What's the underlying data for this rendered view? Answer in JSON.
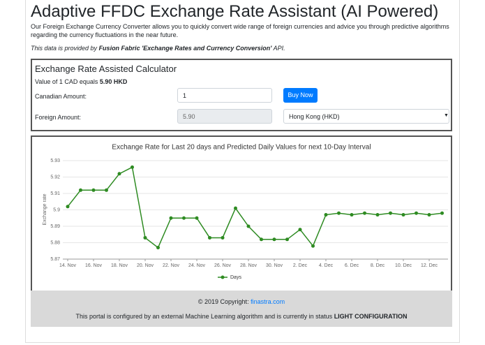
{
  "header": {
    "title": "Adaptive FFDC Exchange Rate Assistant (AI Powered)",
    "description": "Our Foreign Exchange Currency Converter allows you to quickly convert wide range of foreign currencies and advice you through predictive algorithms regarding the currency fluctuations in the near future.",
    "source_prefix": "This data is provided by ",
    "source_name": "Fusion Fabric 'Exchange Rates and Currency Conversion'",
    "source_suffix": " API."
  },
  "calculator": {
    "title": "Exchange Rate Assisted Calculator",
    "rate_prefix": "Value of 1 CAD equals ",
    "rate": "5.90 HKD",
    "canadian_label": "Canadian Amount:",
    "canadian_value": "1",
    "button": "Buy Now",
    "foreign_label": "Foreign Amount:",
    "foreign_value": "5.90",
    "currency": "Hong Kong (HKD)"
  },
  "chart_data": {
    "type": "line",
    "title": "Exchange Rate for Last 20 days and Predicted Daily Values for next 10-Day Interval",
    "y_label": "Exchange rate",
    "categories": [
      "14. Nov",
      null,
      "16. Nov",
      null,
      "18. Nov",
      null,
      "20. Nov",
      null,
      "22. Nov",
      null,
      "24. Nov",
      null,
      "26. Nov",
      null,
      "28. Nov",
      null,
      "30. Nov",
      null,
      "2. Dec",
      null,
      "4. Dec",
      null,
      "6. Dec",
      null,
      "8. Dec",
      null,
      "10. Dec",
      null,
      "12. Dec",
      null
    ],
    "series": [
      {
        "name": "Days",
        "color": "#2e8b22",
        "values": [
          5.902,
          5.912,
          5.912,
          5.912,
          5.922,
          5.926,
          5.883,
          5.877,
          5.895,
          5.895,
          5.895,
          5.883,
          5.883,
          5.901,
          5.89,
          5.882,
          5.882,
          5.882,
          5.888,
          5.878,
          5.897,
          5.898,
          5.897,
          5.898,
          5.897,
          5.898,
          5.897,
          5.898,
          5.897,
          5.898
        ]
      }
    ],
    "ylim": [
      5.87,
      5.93
    ],
    "yticks": [
      5.87,
      5.88,
      5.89,
      5.9,
      5.91,
      5.92,
      5.93
    ],
    "grid": true
  },
  "footer": {
    "copyright_prefix": "© 2019 Copyright: ",
    "link": "finastra.com",
    "status_prefix": "This portal is configured by an external Machine Learning algorithm and is currently in status ",
    "status": "LIGHT CONFIGURATION"
  }
}
